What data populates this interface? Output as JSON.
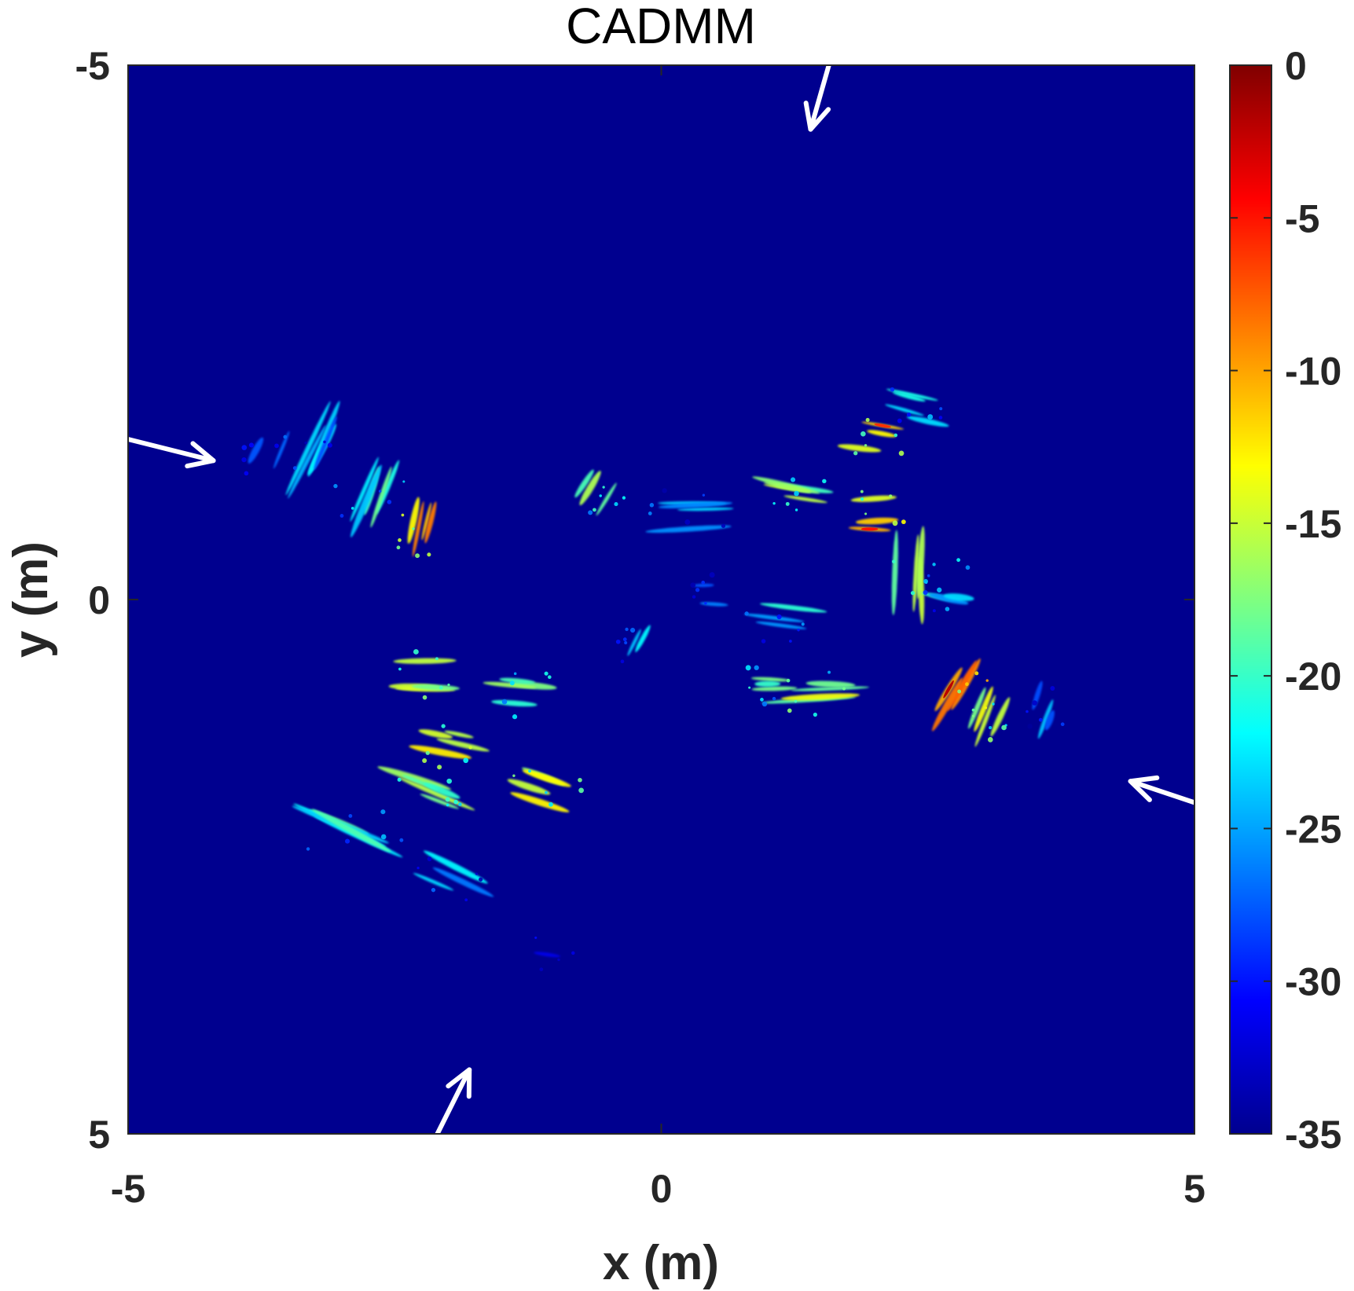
{
  "chart_data": {
    "type": "heatmap",
    "title": "CADMM",
    "xlabel": "x (m)",
    "ylabel": "y (m)",
    "xlim": [
      -5,
      5
    ],
    "ylim": [
      -5,
      5
    ],
    "y_direction": "reversed (-5 at top, 5 at bottom)",
    "x_ticks": [
      "-5",
      "0",
      "5"
    ],
    "y_ticks": [
      "-5",
      "0",
      "5"
    ],
    "x_tick_values": [
      -5,
      0,
      5
    ],
    "y_tick_values": [
      -5,
      0,
      5
    ],
    "grid": false,
    "colormap": "jet",
    "background_color": "#00008F",
    "colorbar": {
      "range": [
        -35,
        0
      ],
      "ticks": [
        "0",
        "-5",
        "-10",
        "-15",
        "-20",
        "-25",
        "-30",
        "-35"
      ],
      "tick_values": [
        0,
        -5,
        -10,
        -15,
        -20,
        -25,
        -30,
        -35
      ],
      "placement": "right"
    },
    "annotations": [
      {
        "type": "arrow",
        "color": "#ffffff",
        "from": [
          -5.0,
          -1.5
        ],
        "to": [
          -4.2,
          -1.3
        ]
      },
      {
        "type": "arrow",
        "color": "#ffffff",
        "from": [
          1.6,
          -5.1
        ],
        "to": [
          1.4,
          -4.4
        ]
      },
      {
        "type": "arrow",
        "color": "#ffffff",
        "from": [
          5.0,
          1.9
        ],
        "to": [
          4.4,
          1.7
        ]
      },
      {
        "type": "arrow",
        "color": "#ffffff",
        "from": [
          -2.1,
          5.0
        ],
        "to": [
          -1.8,
          4.4
        ]
      }
    ],
    "features": [
      {
        "cx": -3.2,
        "cy": -1.4,
        "len": 1.0,
        "angle": -65,
        "level": -22,
        "n": 6
      },
      {
        "cx": -2.7,
        "cy": -1.0,
        "len": 0.8,
        "angle": -70,
        "level": -18,
        "n": 5
      },
      {
        "cx": -2.2,
        "cy": -0.6,
        "len": 0.6,
        "angle": -75,
        "level": -8,
        "n": 4
      },
      {
        "cx": -2.2,
        "cy": 0.7,
        "len": 0.6,
        "angle": 0,
        "level": -12,
        "n": 4
      },
      {
        "cx": -1.3,
        "cy": 0.9,
        "len": 0.7,
        "angle": 5,
        "level": -15,
        "n": 4
      },
      {
        "cx": -0.6,
        "cy": -1.0,
        "len": 0.6,
        "angle": -60,
        "level": -15,
        "n": 3
      },
      {
        "cx": 0.3,
        "cy": -0.8,
        "len": 0.9,
        "angle": 0,
        "level": -22,
        "n": 4
      },
      {
        "cx": 1.3,
        "cy": -1.0,
        "len": 0.9,
        "angle": 10,
        "level": -14,
        "n": 5
      },
      {
        "cx": 2.0,
        "cy": -1.5,
        "len": 0.6,
        "angle": 10,
        "level": -10,
        "n": 3
      },
      {
        "cx": 2.1,
        "cy": -0.8,
        "len": 0.5,
        "angle": 0,
        "level": -9,
        "n": 3
      },
      {
        "cx": 2.3,
        "cy": -0.2,
        "len": 1.1,
        "angle": 90,
        "level": -14,
        "n": 4
      },
      {
        "cx": 2.4,
        "cy": -1.8,
        "len": 0.6,
        "angle": 15,
        "level": -20,
        "n": 4
      },
      {
        "cx": 1.5,
        "cy": 0.9,
        "len": 0.9,
        "angle": 0,
        "level": -13,
        "n": 4
      },
      {
        "cx": 1.1,
        "cy": 0.2,
        "len": 0.7,
        "angle": 10,
        "level": -20,
        "n": 3
      },
      {
        "cx": 2.8,
        "cy": 0.9,
        "len": 0.6,
        "angle": -60,
        "level": -6,
        "n": 4
      },
      {
        "cx": 3.1,
        "cy": 1.1,
        "len": 0.7,
        "angle": -65,
        "level": -12,
        "n": 4
      },
      {
        "cx": 3.6,
        "cy": 1.0,
        "len": 0.4,
        "angle": -70,
        "level": -24,
        "n": 3
      },
      {
        "cx": 2.7,
        "cy": -0.1,
        "len": 0.5,
        "angle": 10,
        "level": -20,
        "n": 3
      },
      {
        "cx": -2.0,
        "cy": 1.4,
        "len": 0.6,
        "angle": 10,
        "level": -10,
        "n": 4
      },
      {
        "cx": -2.2,
        "cy": 1.8,
        "len": 0.8,
        "angle": 20,
        "level": -15,
        "n": 5
      },
      {
        "cx": -1.1,
        "cy": 1.8,
        "len": 0.8,
        "angle": 20,
        "level": -12,
        "n": 4
      },
      {
        "cx": -2.9,
        "cy": 2.2,
        "len": 1.1,
        "angle": 25,
        "level": -18,
        "n": 5
      },
      {
        "cx": -2.0,
        "cy": 2.6,
        "len": 0.8,
        "angle": 25,
        "level": -22,
        "n": 3
      },
      {
        "cx": -1.0,
        "cy": 3.3,
        "len": 0.4,
        "angle": 10,
        "level": -26,
        "n": 1
      },
      {
        "cx": -3.7,
        "cy": -1.3,
        "len": 0.5,
        "angle": -65,
        "level": -26,
        "n": 2
      },
      {
        "cx": 1.0,
        "cy": 0.85,
        "len": 0.5,
        "angle": 0,
        "level": -16,
        "n": 3
      },
      {
        "cx": -0.3,
        "cy": 0.4,
        "len": 0.3,
        "angle": -60,
        "level": -22,
        "n": 2
      },
      {
        "cx": 0.4,
        "cy": -0.1,
        "len": 0.3,
        "angle": 0,
        "level": -24,
        "n": 2
      }
    ]
  }
}
